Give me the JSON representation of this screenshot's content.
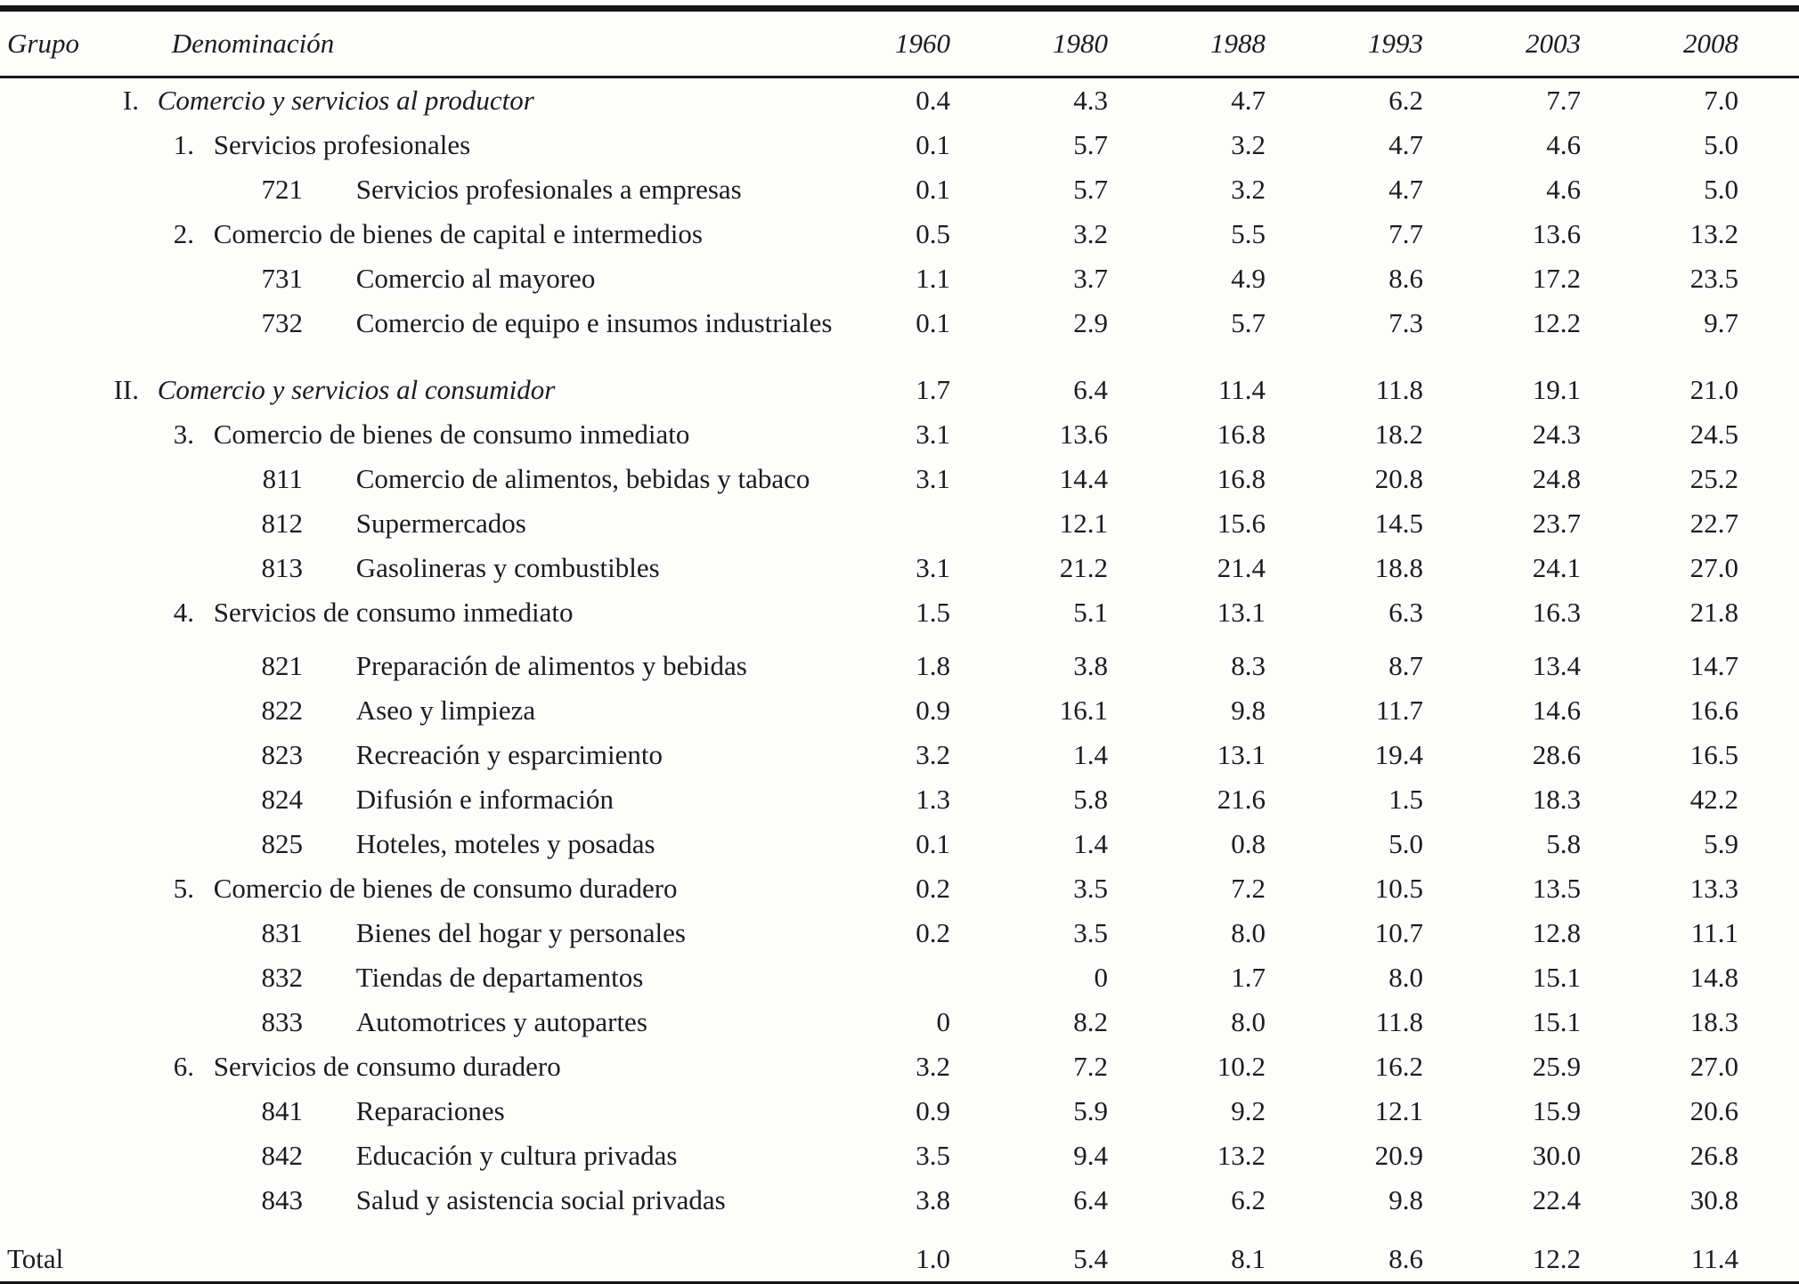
{
  "table": {
    "header": {
      "grupo": "Grupo",
      "denominacion": "Denominación",
      "years": [
        "1960",
        "1980",
        "1988",
        "1993",
        "2003",
        "2008"
      ]
    },
    "rows": [
      {
        "type": "group",
        "prefix": "I.",
        "label": "Comercio y servicios al productor",
        "values": [
          "0.4",
          "4.3",
          "4.7",
          "6.2",
          "7.7",
          "7.0"
        ]
      },
      {
        "type": "num",
        "prefix": "1.",
        "label": "Servicios profesionales",
        "values": [
          "0.1",
          "5.7",
          "3.2",
          "4.7",
          "4.6",
          "5.0"
        ]
      },
      {
        "type": "code",
        "prefix": "721",
        "label": "Servicios profesionales a empresas",
        "values": [
          "0.1",
          "5.7",
          "3.2",
          "4.7",
          "4.6",
          "5.0"
        ]
      },
      {
        "type": "num",
        "prefix": "2.",
        "label": "Comercio de bienes de capital e intermedios",
        "values": [
          "0.5",
          "3.2",
          "5.5",
          "7.7",
          "13.6",
          "13.2"
        ]
      },
      {
        "type": "code",
        "prefix": "731",
        "label": "Comercio al mayoreo",
        "values": [
          "1.1",
          "3.7",
          "4.9",
          "8.6",
          "17.2",
          "23.5"
        ]
      },
      {
        "type": "code",
        "prefix": "732",
        "label": "Comercio de equipo e insumos industriales",
        "values": [
          "0.1",
          "2.9",
          "5.7",
          "7.3",
          "12.2",
          "9.7"
        ]
      },
      {
        "type": "group",
        "prefix": "II.",
        "label": "Comercio y servicios al consumidor",
        "values": [
          "1.7",
          "6.4",
          "11.4",
          "11.8",
          "19.1",
          "21.0"
        ]
      },
      {
        "type": "num",
        "prefix": "3.",
        "label": "Comercio de bienes de consumo inmediato",
        "values": [
          "3.1",
          "13.6",
          "16.8",
          "18.2",
          "24.3",
          "24.5"
        ]
      },
      {
        "type": "code",
        "prefix": "811",
        "label": "Comercio de alimentos, bebidas y tabaco",
        "values": [
          "3.1",
          "14.4",
          "16.8",
          "20.8",
          "24.8",
          "25.2"
        ]
      },
      {
        "type": "code",
        "prefix": "812",
        "label": "Supermercados",
        "values": [
          "",
          "12.1",
          "15.6",
          "14.5",
          "23.7",
          "22.7"
        ]
      },
      {
        "type": "code",
        "prefix": "813",
        "label": "Gasolineras y combustibles",
        "values": [
          "3.1",
          "21.2",
          "21.4",
          "18.8",
          "24.1",
          "27.0"
        ]
      },
      {
        "type": "num",
        "prefix": "4.",
        "label": "Servicios de consumo inmediato",
        "values": [
          "1.5",
          "5.1",
          "13.1",
          "6.3",
          "16.3",
          "21.8"
        ]
      },
      {
        "type": "code",
        "prefix": "821",
        "label": "Preparación de alimentos y bebidas",
        "values": [
          "1.8",
          "3.8",
          "8.3",
          "8.7",
          "13.4",
          "14.7"
        ]
      },
      {
        "type": "code",
        "prefix": "822",
        "label": "Aseo y limpieza",
        "values": [
          "0.9",
          "16.1",
          "9.8",
          "11.7",
          "14.6",
          "16.6"
        ]
      },
      {
        "type": "code",
        "prefix": "823",
        "label": "Recreación y esparcimiento",
        "values": [
          "3.2",
          "1.4",
          "13.1",
          "19.4",
          "28.6",
          "16.5"
        ]
      },
      {
        "type": "code",
        "prefix": "824",
        "label": "Difusión e información",
        "values": [
          "1.3",
          "5.8",
          "21.6",
          "1.5",
          "18.3",
          "42.2"
        ]
      },
      {
        "type": "code",
        "prefix": "825",
        "label": "Hoteles, moteles y posadas",
        "values": [
          "0.1",
          "1.4",
          "0.8",
          "5.0",
          "5.8",
          "5.9"
        ]
      },
      {
        "type": "num",
        "prefix": "5.",
        "label": "Comercio de bienes de consumo duradero",
        "values": [
          "0.2",
          "3.5",
          "7.2",
          "10.5",
          "13.5",
          "13.3"
        ]
      },
      {
        "type": "code",
        "prefix": "831",
        "label": "Bienes del hogar y personales",
        "values": [
          "0.2",
          "3.5",
          "8.0",
          "10.7",
          "12.8",
          "11.1"
        ]
      },
      {
        "type": "code",
        "prefix": "832",
        "label": "Tiendas de departamentos",
        "values": [
          "",
          "0",
          "1.7",
          "8.0",
          "15.1",
          "14.8"
        ]
      },
      {
        "type": "code",
        "prefix": "833",
        "label": "Automotrices y autopartes",
        "values": [
          "0",
          "8.2",
          "8.0",
          "11.8",
          "15.1",
          "18.3"
        ]
      },
      {
        "type": "num",
        "prefix": "6.",
        "label": "Servicios de consumo duradero",
        "values": [
          "3.2",
          "7.2",
          "10.2",
          "16.2",
          "25.9",
          "27.0"
        ]
      },
      {
        "type": "code",
        "prefix": "841",
        "label": "Reparaciones",
        "values": [
          "0.9",
          "5.9",
          "9.2",
          "12.1",
          "15.9",
          "20.6"
        ]
      },
      {
        "type": "code",
        "prefix": "842",
        "label": "Educación y cultura privadas",
        "values": [
          "3.5",
          "9.4",
          "13.2",
          "20.9",
          "30.0",
          "26.8"
        ]
      },
      {
        "type": "code",
        "prefix": "843",
        "label": "Salud y asistencia social privadas",
        "values": [
          "3.8",
          "6.4",
          "6.2",
          "9.8",
          "22.4",
          "30.8"
        ]
      },
      {
        "type": "total",
        "prefix": "",
        "label": "Total",
        "values": [
          "1.0",
          "5.4",
          "8.1",
          "8.6",
          "12.2",
          "11.4"
        ]
      }
    ]
  }
}
